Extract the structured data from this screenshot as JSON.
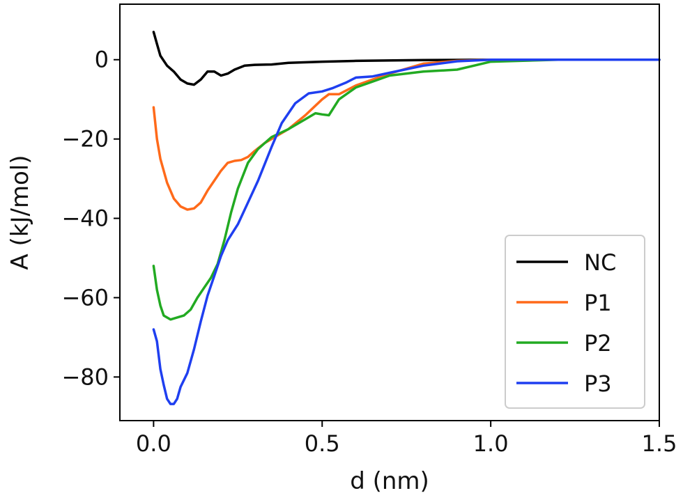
{
  "chart_data": {
    "type": "line",
    "title": "",
    "xlabel": "d (nm)",
    "ylabel": "A (kJ/mol)",
    "xlim": [
      -0.1,
      1.5
    ],
    "ylim": [
      -91,
      14
    ],
    "xticks": [
      0.0,
      0.5,
      1.0,
      1.5
    ],
    "xtick_labels": [
      "0.0",
      "0.5",
      "1.0",
      "1.5"
    ],
    "yticks": [
      0,
      -20,
      -40,
      -60,
      -80
    ],
    "ytick_labels": [
      "0",
      "−20",
      "−40",
      "−60",
      "−80"
    ],
    "grid": false,
    "legend_position": "lower-right",
    "series": [
      {
        "name": "NC",
        "color": "#000000",
        "x": [
          0,
          0.01,
          0.02,
          0.04,
          0.06,
          0.08,
          0.1,
          0.12,
          0.14,
          0.16,
          0.18,
          0.2,
          0.22,
          0.24,
          0.27,
          0.3,
          0.35,
          0.4,
          0.5,
          0.6,
          0.8,
          1.0,
          1.2,
          1.5
        ],
        "y": [
          7,
          4,
          1,
          -1.5,
          -3,
          -5,
          -6,
          -6.3,
          -5,
          -3,
          -3,
          -4,
          -3.5,
          -2.5,
          -1.5,
          -1.3,
          -1.2,
          -0.8,
          -0.5,
          -0.3,
          -0.1,
          0,
          0,
          0
        ]
      },
      {
        "name": "P1",
        "color": "#ff6a1a",
        "x": [
          0,
          0.01,
          0.02,
          0.04,
          0.06,
          0.08,
          0.1,
          0.12,
          0.14,
          0.16,
          0.18,
          0.2,
          0.22,
          0.24,
          0.26,
          0.28,
          0.3,
          0.33,
          0.36,
          0.4,
          0.45,
          0.5,
          0.52,
          0.55,
          0.6,
          0.65,
          0.7,
          0.8,
          0.9,
          1.0,
          1.2,
          1.5
        ],
        "y": [
          -12,
          -20,
          -25,
          -31,
          -35,
          -37,
          -37.8,
          -37.5,
          -36,
          -33,
          -30.5,
          -28,
          -26,
          -25.5,
          -25.3,
          -24.5,
          -23,
          -21,
          -19.5,
          -17.5,
          -14,
          -10,
          -8.7,
          -8.7,
          -6.5,
          -5,
          -3.5,
          -1,
          -0.3,
          0,
          0,
          0
        ]
      },
      {
        "name": "P2",
        "color": "#22aa22",
        "x": [
          0,
          0.01,
          0.02,
          0.03,
          0.05,
          0.07,
          0.09,
          0.11,
          0.13,
          0.15,
          0.17,
          0.19,
          0.21,
          0.23,
          0.25,
          0.28,
          0.31,
          0.35,
          0.4,
          0.45,
          0.48,
          0.5,
          0.52,
          0.55,
          0.6,
          0.65,
          0.7,
          0.8,
          0.9,
          0.95,
          1.0,
          1.2,
          1.5
        ],
        "y": [
          -52,
          -58,
          -62,
          -64.5,
          -65.5,
          -65,
          -64.5,
          -63,
          -60,
          -57.5,
          -55,
          -51.5,
          -45.5,
          -38.5,
          -32.5,
          -26,
          -22.5,
          -19.5,
          -17.5,
          -15,
          -13.5,
          -13.8,
          -14,
          -10,
          -7,
          -5.5,
          -4,
          -3,
          -2.5,
          -1.5,
          -0.5,
          0,
          0
        ]
      },
      {
        "name": "P3",
        "color": "#1f3ff0",
        "x": [
          0,
          0.01,
          0.02,
          0.03,
          0.04,
          0.05,
          0.06,
          0.07,
          0.08,
          0.1,
          0.12,
          0.14,
          0.16,
          0.18,
          0.2,
          0.22,
          0.25,
          0.28,
          0.31,
          0.35,
          0.38,
          0.42,
          0.46,
          0.5,
          0.53,
          0.57,
          0.6,
          0.65,
          0.7,
          0.8,
          0.9,
          1.0,
          1.2,
          1.5
        ],
        "y": [
          -68,
          -71,
          -78,
          -82,
          -85.5,
          -86.8,
          -86.8,
          -85.5,
          -82.5,
          -79,
          -73,
          -66,
          -59.5,
          -54.5,
          -49.5,
          -45.5,
          -41.5,
          -36,
          -30.5,
          -22,
          -16,
          -11,
          -8.5,
          -8,
          -7.2,
          -5.8,
          -4.5,
          -4.2,
          -3.3,
          -1.5,
          -0.4,
          0,
          0,
          0
        ]
      }
    ]
  }
}
